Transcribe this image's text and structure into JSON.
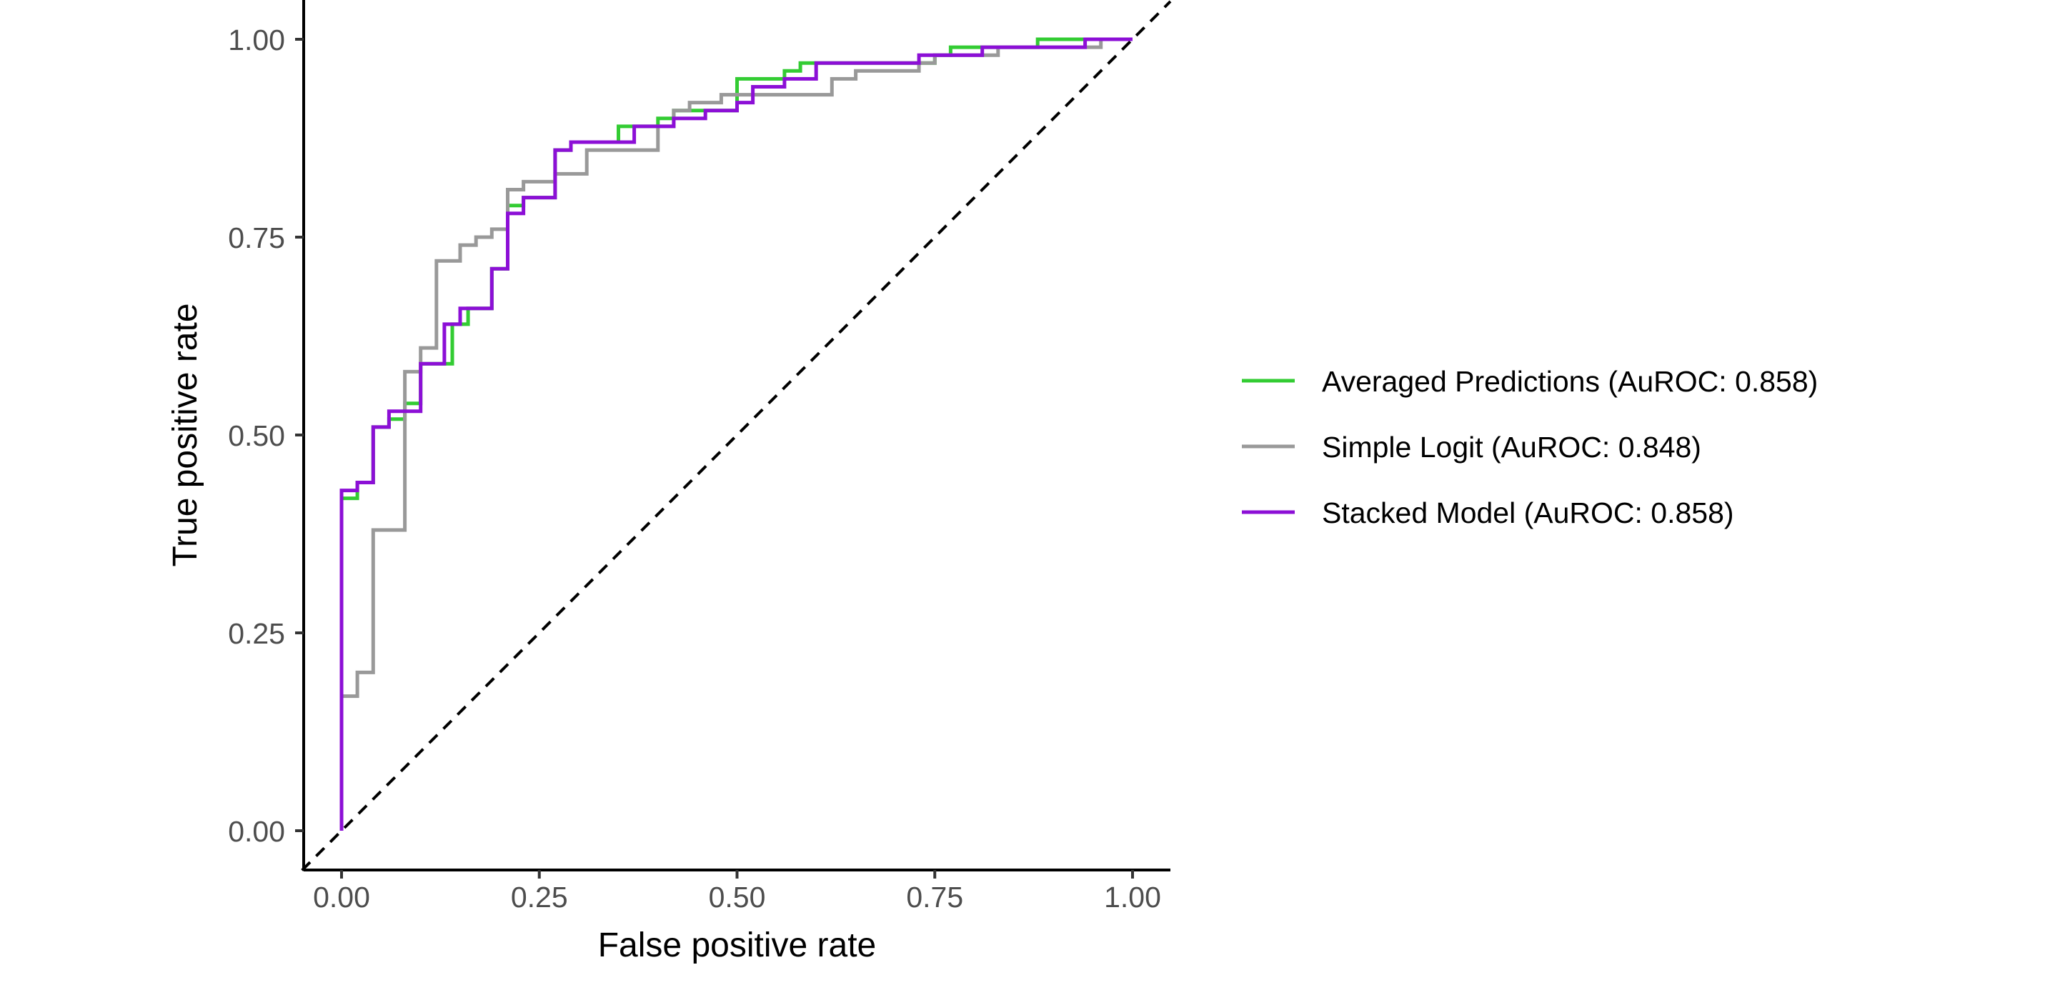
{
  "chart_data": {
    "type": "line",
    "title": "",
    "xlabel": "False positive rate",
    "ylabel": "True positive rate",
    "xlim": [
      -0.05,
      1.05
    ],
    "ylim": [
      -0.05,
      1.05
    ],
    "x_ticks": [
      0.0,
      0.25,
      0.5,
      0.75,
      1.0
    ],
    "y_ticks": [
      0.0,
      0.25,
      0.5,
      0.75,
      1.0
    ],
    "x_tick_labels": [
      "0.00",
      "0.25",
      "0.50",
      "0.75",
      "1.00"
    ],
    "y_tick_labels": [
      "0.00",
      "0.25",
      "0.50",
      "0.75",
      "1.00"
    ],
    "grid": false,
    "legend_position": "right",
    "reference_line": {
      "style": "dashed",
      "color": "#000000",
      "from": [
        -0.05,
        -0.05
      ],
      "to": [
        1.05,
        1.05
      ]
    },
    "series": [
      {
        "name": "Averaged Predictions (AuROC: 0.858)",
        "color": "#33cc33",
        "x": [
          0.0,
          0.0,
          0.02,
          0.02,
          0.04,
          0.04,
          0.06,
          0.06,
          0.08,
          0.08,
          0.1,
          0.1,
          0.14,
          0.14,
          0.16,
          0.16,
          0.19,
          0.19,
          0.21,
          0.21,
          0.23,
          0.23,
          0.27,
          0.27,
          0.29,
          0.29,
          0.31,
          0.31,
          0.35,
          0.35,
          0.4,
          0.4,
          0.42,
          0.42,
          0.46,
          0.46,
          0.5,
          0.5,
          0.52,
          0.52,
          0.56,
          0.56,
          0.58,
          0.58,
          0.6,
          0.6,
          0.75,
          0.75,
          0.77,
          0.77,
          0.81,
          0.81,
          0.88,
          0.88,
          0.94,
          0.94,
          1.0
        ],
        "y": [
          0.0,
          0.42,
          0.42,
          0.44,
          0.44,
          0.51,
          0.51,
          0.52,
          0.52,
          0.54,
          0.54,
          0.59,
          0.59,
          0.64,
          0.64,
          0.66,
          0.66,
          0.71,
          0.71,
          0.79,
          0.79,
          0.8,
          0.8,
          0.86,
          0.86,
          0.87,
          0.87,
          0.87,
          0.87,
          0.89,
          0.89,
          0.9,
          0.9,
          0.91,
          0.91,
          0.91,
          0.91,
          0.95,
          0.95,
          0.95,
          0.95,
          0.96,
          0.96,
          0.97,
          0.97,
          0.97,
          0.97,
          0.98,
          0.98,
          0.99,
          0.99,
          0.99,
          0.99,
          1.0,
          1.0,
          1.0,
          1.0
        ]
      },
      {
        "name": "Simple Logit (AuROC: 0.848)",
        "color": "#999999",
        "x": [
          0.0,
          0.0,
          0.02,
          0.02,
          0.04,
          0.04,
          0.08,
          0.08,
          0.1,
          0.1,
          0.12,
          0.12,
          0.14,
          0.14,
          0.15,
          0.15,
          0.17,
          0.17,
          0.19,
          0.19,
          0.21,
          0.21,
          0.23,
          0.23,
          0.25,
          0.25,
          0.27,
          0.27,
          0.31,
          0.31,
          0.4,
          0.4,
          0.42,
          0.42,
          0.44,
          0.44,
          0.48,
          0.48,
          0.56,
          0.56,
          0.62,
          0.62,
          0.65,
          0.65,
          0.73,
          0.73,
          0.75,
          0.75,
          0.83,
          0.83,
          0.94,
          0.94,
          0.96,
          0.96,
          1.0
        ],
        "y": [
          0.0,
          0.17,
          0.17,
          0.2,
          0.2,
          0.38,
          0.38,
          0.58,
          0.58,
          0.61,
          0.61,
          0.72,
          0.72,
          0.72,
          0.72,
          0.74,
          0.74,
          0.75,
          0.75,
          0.76,
          0.76,
          0.81,
          0.81,
          0.82,
          0.82,
          0.82,
          0.82,
          0.83,
          0.83,
          0.86,
          0.86,
          0.89,
          0.89,
          0.91,
          0.91,
          0.92,
          0.92,
          0.93,
          0.93,
          0.93,
          0.93,
          0.95,
          0.95,
          0.96,
          0.96,
          0.97,
          0.97,
          0.98,
          0.98,
          0.99,
          0.99,
          0.99,
          0.99,
          1.0,
          1.0
        ]
      },
      {
        "name": "Stacked Model (AuROC: 0.858)",
        "color": "#8c0fd6",
        "x": [
          0.0,
          0.0,
          0.02,
          0.02,
          0.04,
          0.04,
          0.06,
          0.06,
          0.1,
          0.1,
          0.13,
          0.13,
          0.15,
          0.15,
          0.19,
          0.19,
          0.21,
          0.21,
          0.23,
          0.23,
          0.27,
          0.27,
          0.29,
          0.29,
          0.31,
          0.31,
          0.37,
          0.37,
          0.42,
          0.42,
          0.46,
          0.46,
          0.5,
          0.5,
          0.52,
          0.52,
          0.56,
          0.56,
          0.6,
          0.6,
          0.73,
          0.73,
          0.77,
          0.77,
          0.81,
          0.81,
          0.9,
          0.9,
          0.94,
          0.94,
          1.0
        ],
        "y": [
          0.0,
          0.43,
          0.43,
          0.44,
          0.44,
          0.51,
          0.51,
          0.53,
          0.53,
          0.59,
          0.59,
          0.64,
          0.64,
          0.66,
          0.66,
          0.71,
          0.71,
          0.78,
          0.78,
          0.8,
          0.8,
          0.86,
          0.86,
          0.87,
          0.87,
          0.87,
          0.87,
          0.89,
          0.89,
          0.9,
          0.9,
          0.91,
          0.91,
          0.92,
          0.92,
          0.94,
          0.94,
          0.95,
          0.95,
          0.97,
          0.97,
          0.98,
          0.98,
          0.98,
          0.98,
          0.99,
          0.99,
          0.99,
          0.99,
          1.0,
          1.0
        ]
      }
    ]
  }
}
